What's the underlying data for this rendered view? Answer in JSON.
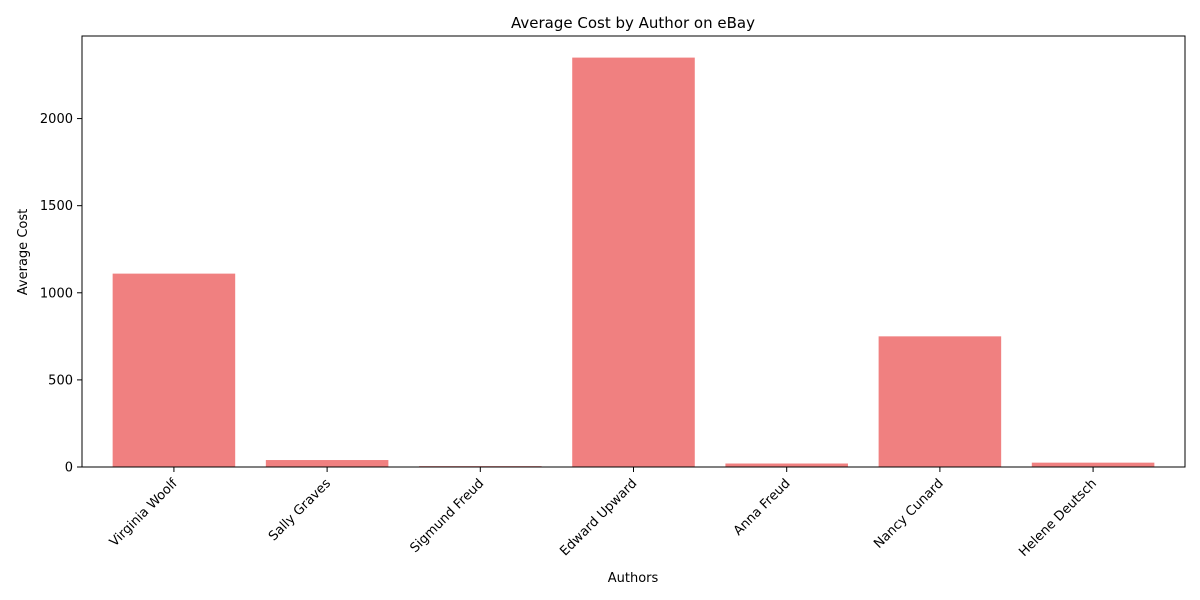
{
  "chart_data": {
    "type": "bar",
    "title": "Average Cost by Author on eBay",
    "xlabel": "Authors",
    "ylabel": "Average Cost",
    "categories": [
      "Virginia Woolf",
      "Sally Graves",
      "Sigmund Freud",
      "Edward Upward",
      "Anna Freud",
      "Nancy Cunard",
      "Helene Deutsch"
    ],
    "values": [
      1110,
      40,
      5,
      2350,
      20,
      750,
      25
    ],
    "ylim": [
      0,
      2474
    ],
    "yticks": [
      0,
      500,
      1000,
      1500,
      2000
    ],
    "bar_color": "#f08080",
    "grid": false,
    "legend": "none"
  }
}
